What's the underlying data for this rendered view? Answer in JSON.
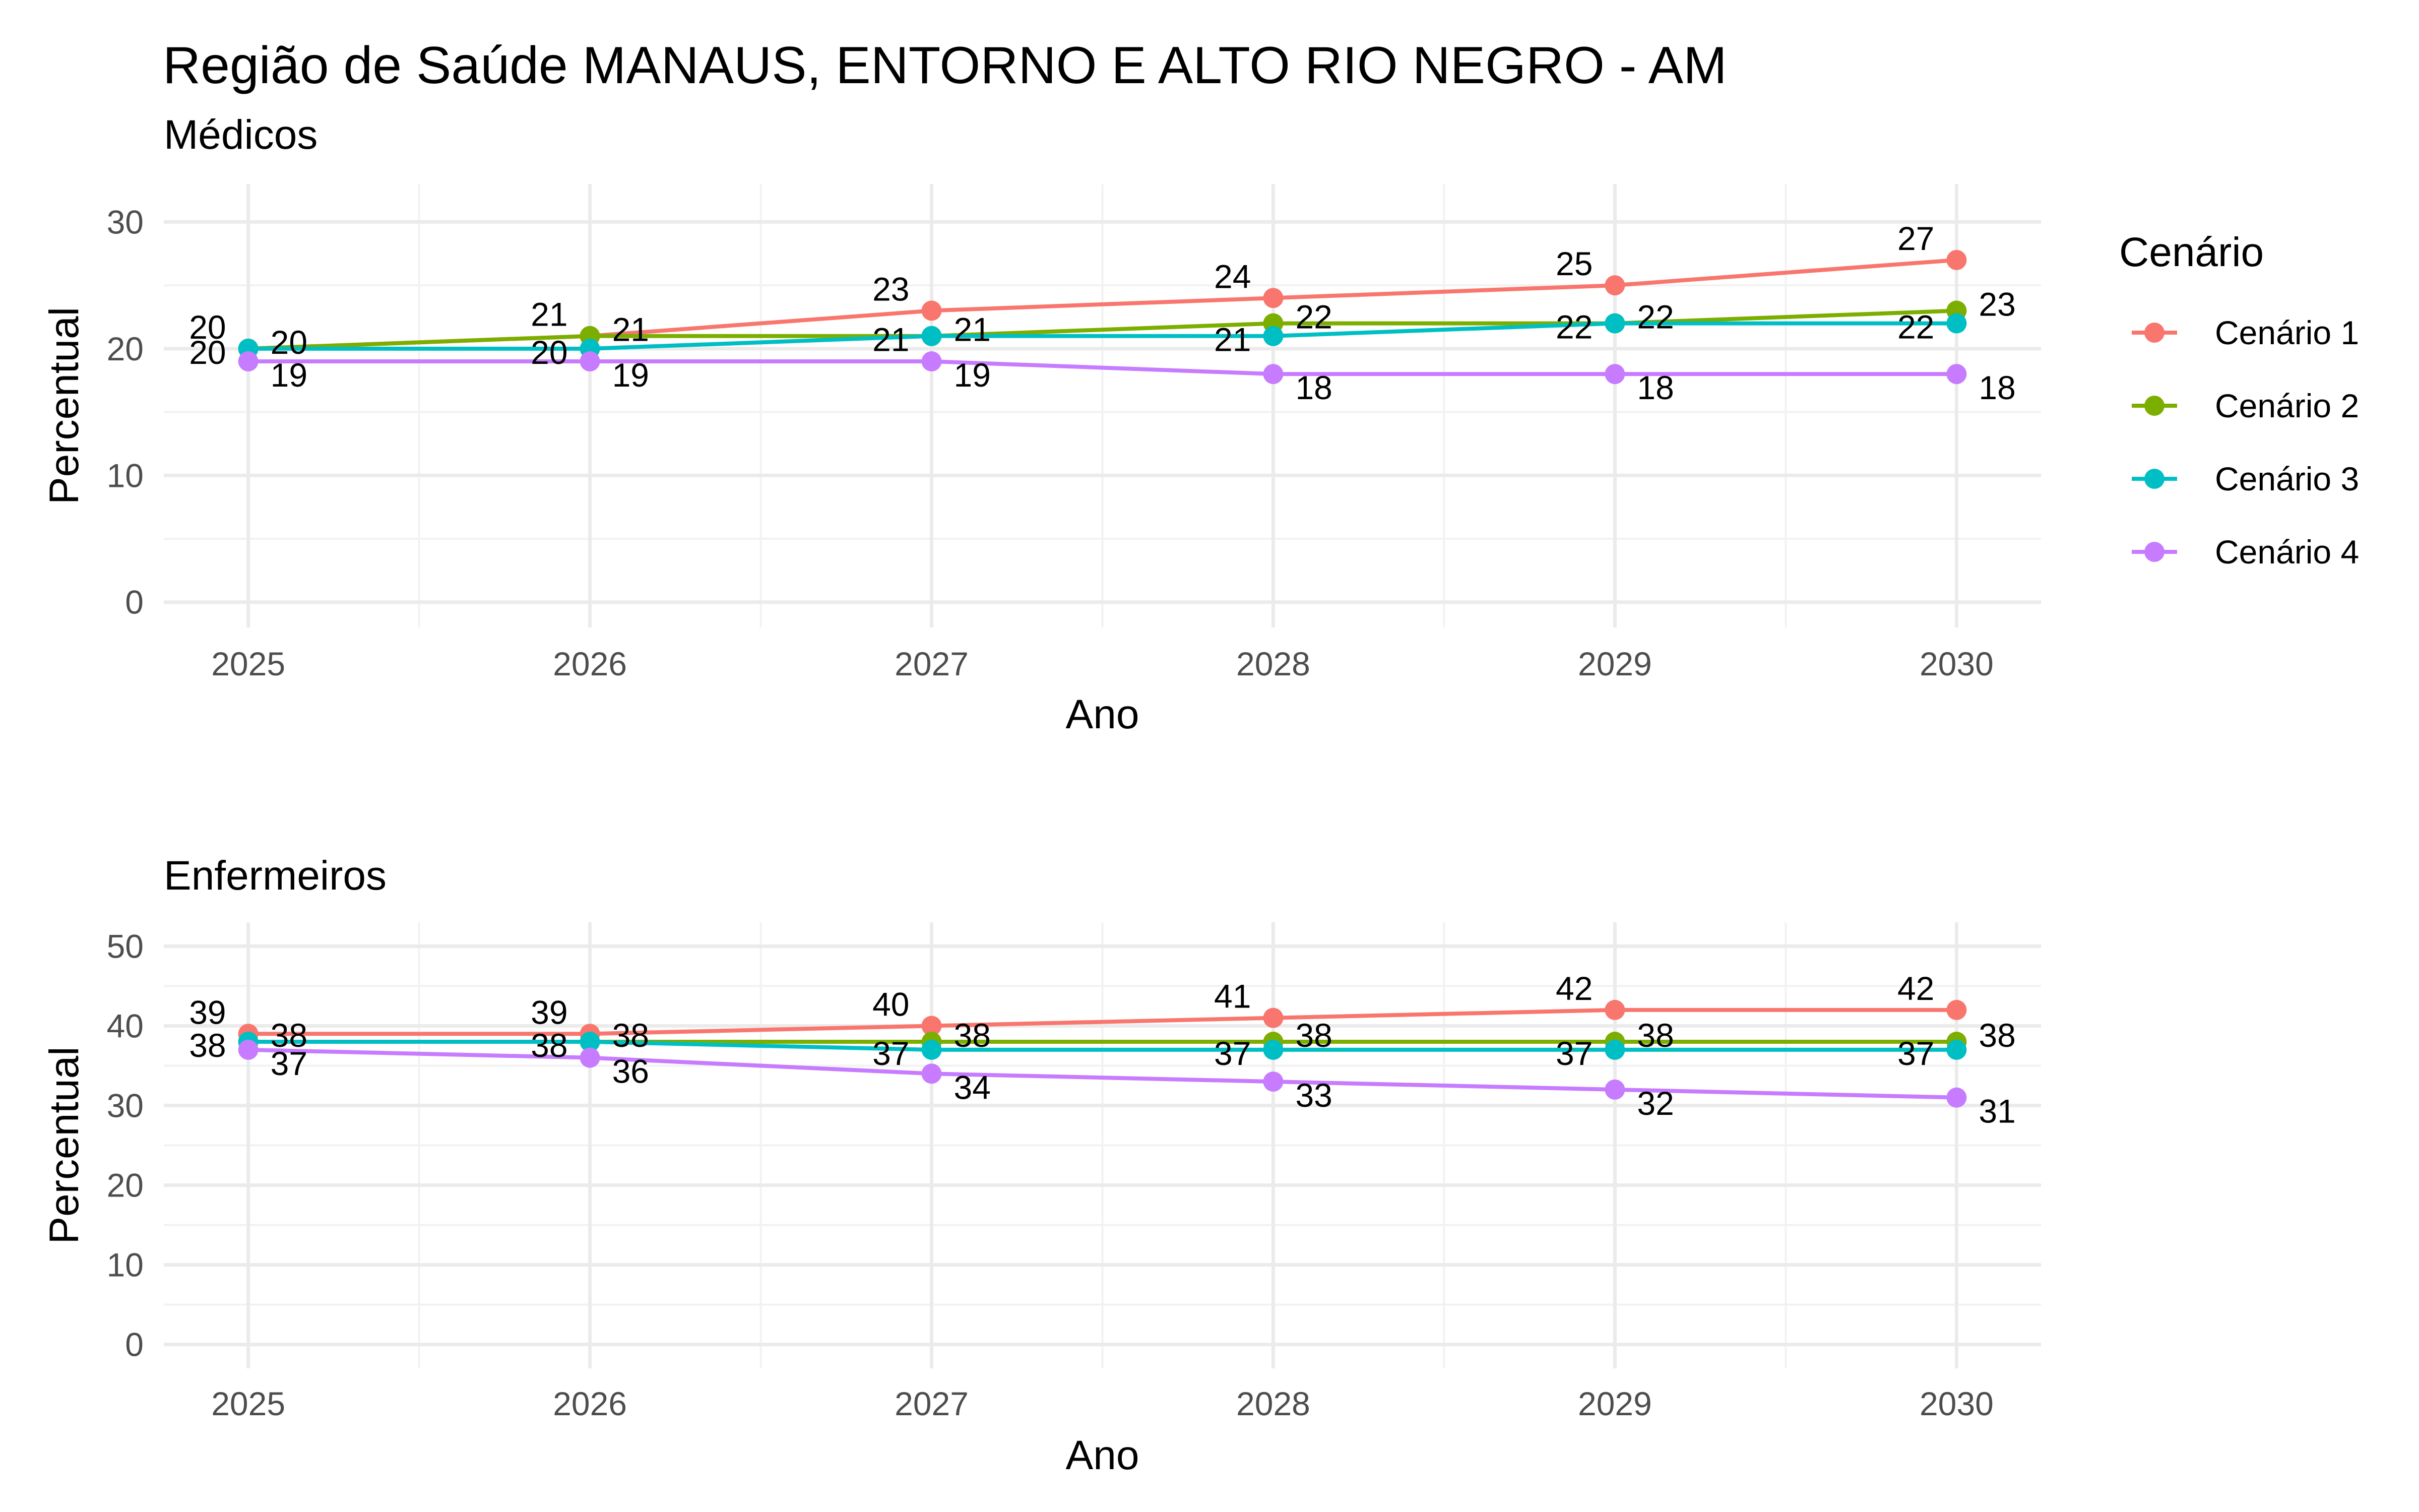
{
  "title": "Região de Saúde MANAUS, ENTORNO E ALTO RIO NEGRO - AM",
  "legend": {
    "title": "Cenário",
    "position": "right",
    "items": [
      {
        "label": "Cenário 1",
        "color": "#F8766D"
      },
      {
        "label": "Cenário 2",
        "color": "#7CAE00"
      },
      {
        "label": "Cenário 3",
        "color": "#00BFC4"
      },
      {
        "label": "Cenário 4",
        "color": "#C77CFF"
      }
    ]
  },
  "chart_data": [
    {
      "type": "line",
      "subtitle": "Médicos",
      "xlabel": "Ano",
      "ylabel": "Percentual",
      "x": [
        2025,
        2026,
        2027,
        2028,
        2029,
        2030
      ],
      "x_ticks": [
        "2025",
        "2026",
        "2027",
        "2028",
        "2029",
        "2030"
      ],
      "y_ticks": [
        "0",
        "10",
        "20",
        "30"
      ],
      "ylim": [
        -2,
        33
      ],
      "grid": true,
      "series": [
        {
          "name": "Cenário 1",
          "values": [
            20,
            21,
            23,
            24,
            25,
            27
          ]
        },
        {
          "name": "Cenário 2",
          "values": [
            20,
            21,
            21,
            22,
            22,
            23
          ]
        },
        {
          "name": "Cenário 3",
          "values": [
            20,
            20,
            21,
            21,
            22,
            22
          ]
        },
        {
          "name": "Cenário 4",
          "values": [
            19,
            19,
            19,
            18,
            18,
            18
          ]
        }
      ]
    },
    {
      "type": "line",
      "subtitle": "Enfermeiros",
      "xlabel": "Ano",
      "ylabel": "Percentual",
      "x": [
        2025,
        2026,
        2027,
        2028,
        2029,
        2030
      ],
      "x_ticks": [
        "2025",
        "2026",
        "2027",
        "2028",
        "2029",
        "2030"
      ],
      "y_ticks": [
        "0",
        "10",
        "20",
        "30",
        "40",
        "50"
      ],
      "ylim": [
        -3,
        53
      ],
      "grid": true,
      "series": [
        {
          "name": "Cenário 1",
          "values": [
            39,
            39,
            40,
            41,
            42,
            42
          ]
        },
        {
          "name": "Cenário 2",
          "values": [
            38,
            38,
            38,
            38,
            38,
            38
          ]
        },
        {
          "name": "Cenário 3",
          "values": [
            38,
            38,
            37,
            37,
            37,
            37
          ]
        },
        {
          "name": "Cenário 4",
          "values": [
            37,
            36,
            34,
            33,
            32,
            31
          ]
        }
      ]
    }
  ]
}
